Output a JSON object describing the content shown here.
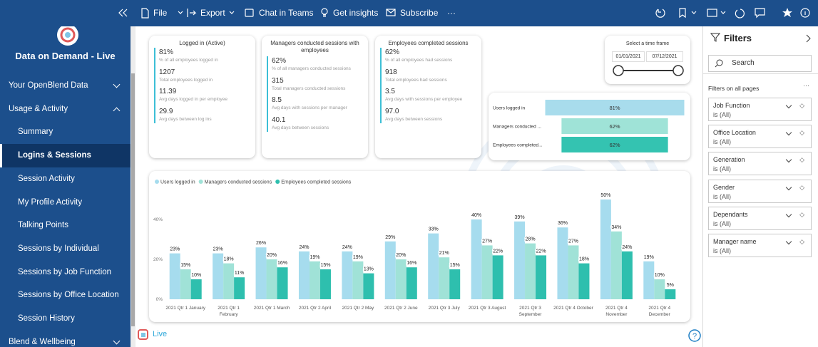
{
  "toolbar": {
    "items": [
      "File",
      "Export",
      "Chat in Teams",
      "Get insights",
      "Subscribe"
    ]
  },
  "sidebar": {
    "title": "Data on Demand - Live",
    "nav": [
      {
        "label": "Your OpenBlend Data"
      },
      {
        "label": "Usage & Activity",
        "items": [
          "Summary",
          "Logins & Sessions",
          "Session Activity",
          "My Profile Activity",
          "Talking Points",
          "Sessions by Individual",
          "Sessions by Job Function",
          "Sessions by Office Location",
          "Session History"
        ]
      },
      {
        "label": "Blend & Wellbeing"
      }
    ]
  },
  "cards": [
    {
      "title": "Logged in (Active)",
      "metrics": [
        {
          "value": "81%",
          "label": "% of all employees logged in"
        },
        {
          "value": "1207",
          "label": "Total employees logged in"
        },
        {
          "value": "11.39",
          "label": "Avg days logged in per employee"
        },
        {
          "value": "29.9",
          "label": "Avg days between log ins"
        }
      ]
    },
    {
      "title": "Managers conducted sessions with employees",
      "metrics": [
        {
          "value": "62%",
          "label": "% of all managers conducted sessions"
        },
        {
          "value": "315",
          "label": "Total managers conducted sessions"
        },
        {
          "value": "8.5",
          "label": "Avg days with sessions per manager"
        },
        {
          "value": "40.1",
          "label": "Avg days between sessions"
        }
      ]
    },
    {
      "title": "Employees completed sessions",
      "metrics": [
        {
          "value": "62%",
          "label": "% of all employees had sessions"
        },
        {
          "value": "918",
          "label": "Total employees had sessions"
        },
        {
          "value": "3.5",
          "label": "Avg days with sessions per employee"
        },
        {
          "value": "97.0",
          "label": "Avg days between sessions"
        }
      ]
    }
  ],
  "time_frame": {
    "title": "Select a time frame",
    "start": "01/01/2021",
    "end": "07/12/2021"
  },
  "chart_data": [
    {
      "type": "funnel",
      "categories": [
        "Users logged in",
        "Managers conducted ...",
        "Employees completed..."
      ],
      "values": [
        81,
        62,
        62
      ],
      "value_labels": [
        "81%",
        "62%",
        "62%"
      ],
      "colors": [
        "#a8dcec",
        "#9fe3d7",
        "#34c3b1"
      ]
    },
    {
      "type": "bar",
      "categories": [
        "2021 Qtr 1 January",
        "2021 Qtr 1 February",
        "2021 Qtr 1 March",
        "2021 Qtr 2 April",
        "2021 Qtr 2 May",
        "2021 Qtr 2 June",
        "2021 Qtr 3 July",
        "2021 Qtr 3 August",
        "2021 Qtr 3 September",
        "2021 Qtr 4 October",
        "2021 Qtr 4 November",
        "2021 Qtr 4 December"
      ],
      "series": [
        {
          "name": "Users logged in",
          "color": "#a6dcee",
          "values": [
            23,
            23,
            26,
            24,
            24,
            29,
            33,
            40,
            39,
            36,
            50,
            19
          ],
          "value_labels": [
            "23%",
            "23%",
            "26%",
            "24%",
            "24%",
            "29%",
            "33%",
            "40%",
            "39%",
            "36%",
            "50%",
            "19%"
          ]
        },
        {
          "name": "Managers conducted sessions",
          "color": "#a0e2d7",
          "values": [
            15,
            18,
            20,
            19,
            19,
            20,
            21,
            27,
            28,
            27,
            34,
            10
          ],
          "value_labels": [
            "15%",
            "18%",
            "20%",
            "19%",
            "19%",
            "20%",
            "21%",
            "27%",
            "28%",
            "27%",
            "34%",
            "10%"
          ]
        },
        {
          "name": "Employees completed sessions",
          "color": "#2ebfae",
          "values": [
            10,
            11,
            16,
            15,
            13,
            16,
            15,
            22,
            22,
            18,
            24,
            5
          ],
          "value_labels": [
            "10%",
            "11%",
            "16%",
            "15%",
            "13%",
            "16%",
            "15%",
            "22%",
            "22%",
            "18%",
            "24%",
            "5%"
          ]
        }
      ],
      "ylim": [
        0,
        55
      ],
      "yticks": [
        {
          "value": 0,
          "label": "0%"
        },
        {
          "value": 20,
          "label": "20%"
        },
        {
          "value": 40,
          "label": "40%"
        }
      ],
      "grid": false,
      "legend": "top-left"
    }
  ],
  "filters": {
    "title": "Filters",
    "search": "Search",
    "section": "Filters on all pages",
    "items": [
      {
        "name": "Job Function",
        "state": "is (All)"
      },
      {
        "name": "Office Location",
        "state": "is (All)"
      },
      {
        "name": "Generation",
        "state": "is (All)"
      },
      {
        "name": "Gender",
        "state": "is (All)"
      },
      {
        "name": "Dependants",
        "state": "is (All)"
      },
      {
        "name": "Manager name",
        "state": "is (All)"
      }
    ]
  },
  "footer": {
    "label": "Live"
  }
}
